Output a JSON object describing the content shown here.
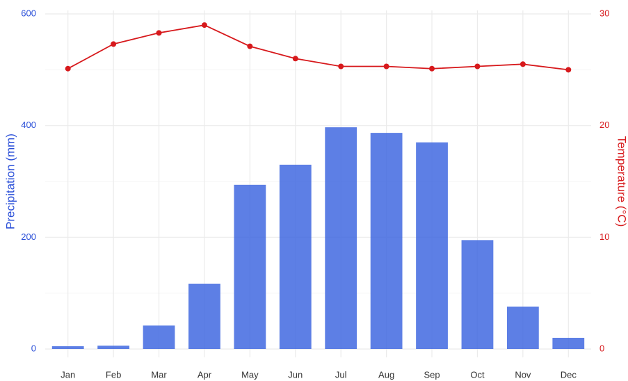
{
  "chart_data": {
    "type": "bar-line",
    "categories": [
      "Jan",
      "Feb",
      "Mar",
      "Apr",
      "May",
      "Jun",
      "Jul",
      "Aug",
      "Sep",
      "Oct",
      "Nov",
      "Dec"
    ],
    "series": [
      {
        "name": "Precipitation (mm)",
        "type": "bar",
        "axis": "y",
        "color": "#4169e1",
        "values": [
          5,
          6,
          42,
          117,
          294,
          330,
          397,
          387,
          370,
          195,
          76,
          20
        ]
      },
      {
        "name": "Temperature (°C)",
        "type": "line",
        "axis": "y2",
        "color": "#d7191c",
        "values": [
          25.1,
          27.3,
          28.3,
          29.0,
          27.1,
          26.0,
          25.3,
          25.3,
          25.1,
          25.3,
          25.5,
          25.0
        ]
      }
    ],
    "ylabel": "Precipitation (mm)",
    "y2label": "Temperature (°C)",
    "ylim": [
      0,
      600
    ],
    "yticks": [
      0,
      200,
      400,
      600
    ],
    "y2lim": [
      0,
      30
    ],
    "y2ticks": [
      0,
      10,
      20,
      30
    ],
    "ylabel_color": "#2a4fd8",
    "y2label_color": "#d7191c",
    "grid": true
  }
}
